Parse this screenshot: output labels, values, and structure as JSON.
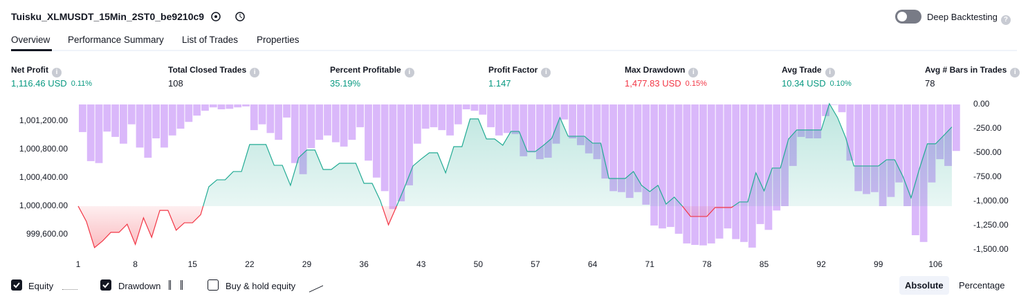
{
  "header": {
    "title": "Tuisku_XLMUSDT_15Min_2ST0_be9210c9",
    "toggle_label": "Deep Backtesting"
  },
  "tabs": [
    "Overview",
    "Performance Summary",
    "List of Trades",
    "Properties"
  ],
  "metrics": [
    {
      "label": "Net Profit",
      "value": "1,116.46 USD",
      "pct": "0.11%",
      "color": "#089981"
    },
    {
      "label": "Total Closed Trades",
      "value": "108",
      "color": "#131722"
    },
    {
      "label": "Percent Profitable",
      "value": "35.19%",
      "color": "#089981"
    },
    {
      "label": "Profit Factor",
      "value": "1.147",
      "color": "#089981"
    },
    {
      "label": "Max Drawdown",
      "value": "1,477.83 USD",
      "pct": "0.15%",
      "color": "#f23645"
    },
    {
      "label": "Avg Trade",
      "value": "10.34 USD",
      "pct": "0.10%",
      "color": "#089981"
    },
    {
      "label": "Avg # Bars in Trades",
      "value": "78",
      "color": "#131722"
    }
  ],
  "chart_data": {
    "type": "equity",
    "x": [
      1,
      2,
      3,
      4,
      5,
      6,
      7,
      8,
      9,
      10,
      11,
      12,
      13,
      14,
      15,
      16,
      17,
      18,
      19,
      20,
      21,
      22,
      23,
      24,
      25,
      26,
      27,
      28,
      29,
      30,
      31,
      32,
      33,
      34,
      35,
      36,
      37,
      38,
      39,
      40,
      41,
      42,
      43,
      44,
      45,
      46,
      47,
      48,
      49,
      50,
      51,
      52,
      53,
      54,
      55,
      56,
      57,
      58,
      59,
      60,
      61,
      62,
      63,
      64,
      65,
      66,
      67,
      68,
      69,
      70,
      71,
      72,
      73,
      74,
      75,
      76,
      77,
      78,
      79,
      80,
      81,
      82,
      83,
      84,
      85,
      86,
      87,
      88,
      89,
      90,
      91,
      92,
      93,
      94,
      95,
      96,
      97,
      98,
      99,
      100,
      101,
      102,
      103,
      104,
      105,
      106,
      107,
      108
    ],
    "series": [
      {
        "name": "Equity",
        "color": "#22ab94",
        "checked": true,
        "values": [
          1000000,
          999785,
          999415,
          999510,
          999630,
          999630,
          999745,
          999460,
          999835,
          999560,
          999940,
          999940,
          999660,
          999765,
          999765,
          999880,
          1000273,
          1000371,
          1000371,
          1000488,
          1000488,
          1000869,
          1000869,
          1000869,
          1000576,
          1000576,
          1000293,
          1000683,
          1000791,
          1000791,
          1000517,
          1000517,
          1000605,
          1000605,
          1000605,
          1000322,
          1000322,
          1000078,
          999736,
          1000000,
          1000273,
          1000566,
          1000664,
          1000752,
          1000752,
          1000469,
          1000839,
          1000839,
          1001230,
          1001230,
          1000947,
          1000947,
          1000859,
          1001054,
          1001054,
          1000771,
          1000771,
          1000859,
          1000957,
          1001249,
          1000986,
          1000986,
          1000986,
          1000888,
          1000888,
          1000390,
          1000390,
          1000390,
          1000488,
          1000293,
          1000205,
          1000293,
          1000029,
          1000127,
          1000000,
          999854,
          999854,
          999854,
          999980,
          999980,
          999980,
          1000059,
          1000059,
          1000469,
          1000215,
          1000537,
          1000537,
          1000947,
          1001074,
          1001074,
          1001074,
          1001074,
          1001445,
          1001249,
          1000966,
          1000566,
          1000566,
          1000566,
          1000566,
          1000654,
          1000654,
          1000420,
          1000117,
          1000517,
          1000879,
          1000879,
          1000996,
          1001116
        ]
      },
      {
        "name": "Drawdown",
        "color": "#d4acf9",
        "axis": "y2",
        "checked": true,
        "values": [
          -285,
          -585,
          -605,
          -280,
          -335,
          -405,
          -205,
          -445,
          -550,
          -350,
          -445,
          -320,
          -250,
          -180,
          -115,
          -65,
          -30,
          -50,
          -45,
          -30,
          -20,
          -265,
          -205,
          -295,
          -365,
          -135,
          -605,
          -720,
          -450,
          -365,
          -320,
          -390,
          -435,
          -365,
          -235,
          -580,
          -755,
          -895,
          -1080,
          -1000,
          -835,
          -405,
          -250,
          -235,
          -265,
          -320,
          -205,
          -50,
          -65,
          -105,
          -235,
          -320,
          -295,
          -305,
          -535,
          -495,
          -565,
          -550,
          -405,
          -155,
          -350,
          -420,
          -505,
          -565,
          -765,
          -895,
          -905,
          -965,
          -905,
          -1035,
          -1250,
          -1280,
          -1265,
          -1335,
          -1435,
          -1450,
          -1455,
          -1435,
          -1385,
          -1280,
          -1390,
          -1420,
          -1478,
          -1235,
          -1295,
          -1095,
          -1050,
          -635,
          -335,
          -350,
          -350,
          -120,
          -5,
          -80,
          -580,
          -895,
          -925,
          -905,
          -1050,
          -955,
          -805,
          -1050,
          -1350,
          -1420,
          -805,
          -565,
          -635,
          -480
        ]
      }
    ],
    "xlim": [
      1,
      109.7
    ],
    "xticks": [
      1,
      8,
      15,
      22,
      29,
      36,
      43,
      50,
      57,
      64,
      71,
      78,
      85,
      92,
      99,
      106
    ],
    "ylim": [
      999385,
      1001434
    ],
    "yticks": [
      {
        "value": 999600,
        "label": "999,600.00"
      },
      {
        "value": 1000000,
        "label": "1,000,000.00"
      },
      {
        "value": 1000400,
        "label": "1,000,400.00"
      },
      {
        "value": 1000800,
        "label": "1,000,800.00"
      },
      {
        "value": 1001200,
        "label": "1,001,200.00"
      }
    ],
    "y2lim": [
      -1500,
      0
    ],
    "y2ticks": [
      {
        "value": 0,
        "label": "0.00"
      },
      {
        "value": -250,
        "label": "-250.00"
      },
      {
        "value": -500,
        "label": "-500.00"
      },
      {
        "value": -750,
        "label": "-750.00"
      },
      {
        "value": -1000,
        "label": "-1,000.00"
      },
      {
        "value": -1250,
        "label": "-1,250.00"
      },
      {
        "value": -1500,
        "label": "-1,500.00"
      }
    ]
  },
  "extra_legend": {
    "label": "Buy & hold equity",
    "checked": false
  },
  "mode_buttons": [
    {
      "label": "Absolute",
      "selected": true
    },
    {
      "label": "Percentage",
      "selected": false
    }
  ]
}
